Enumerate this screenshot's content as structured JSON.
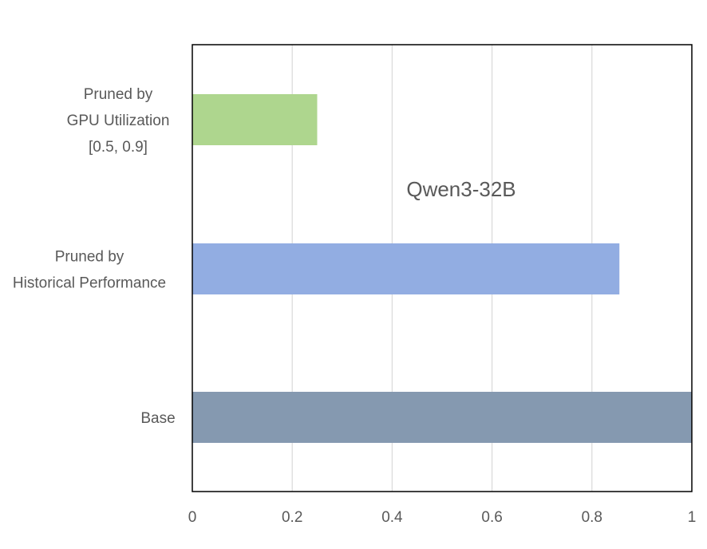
{
  "chart_data": {
    "type": "bar",
    "orientation": "horizontal",
    "categories": [
      [
        "Pruned by",
        "GPU Utilization",
        "[0.5, 0.9]"
      ],
      [
        "Pruned by",
        "Historical Performance"
      ],
      [
        "Base"
      ]
    ],
    "values": [
      0.25,
      0.855,
      1.0
    ],
    "colors": [
      "#aed68e",
      "#92ade2",
      "#8599b0"
    ],
    "xlim": [
      0,
      1
    ],
    "xticks": [
      0,
      0.2,
      0.4,
      0.6,
      0.8,
      1
    ],
    "xtick_labels": [
      "0",
      "0.2",
      "0.4",
      "0.6",
      "0.8",
      "1"
    ],
    "grid": true,
    "annotation": "Qwen3-32B"
  }
}
